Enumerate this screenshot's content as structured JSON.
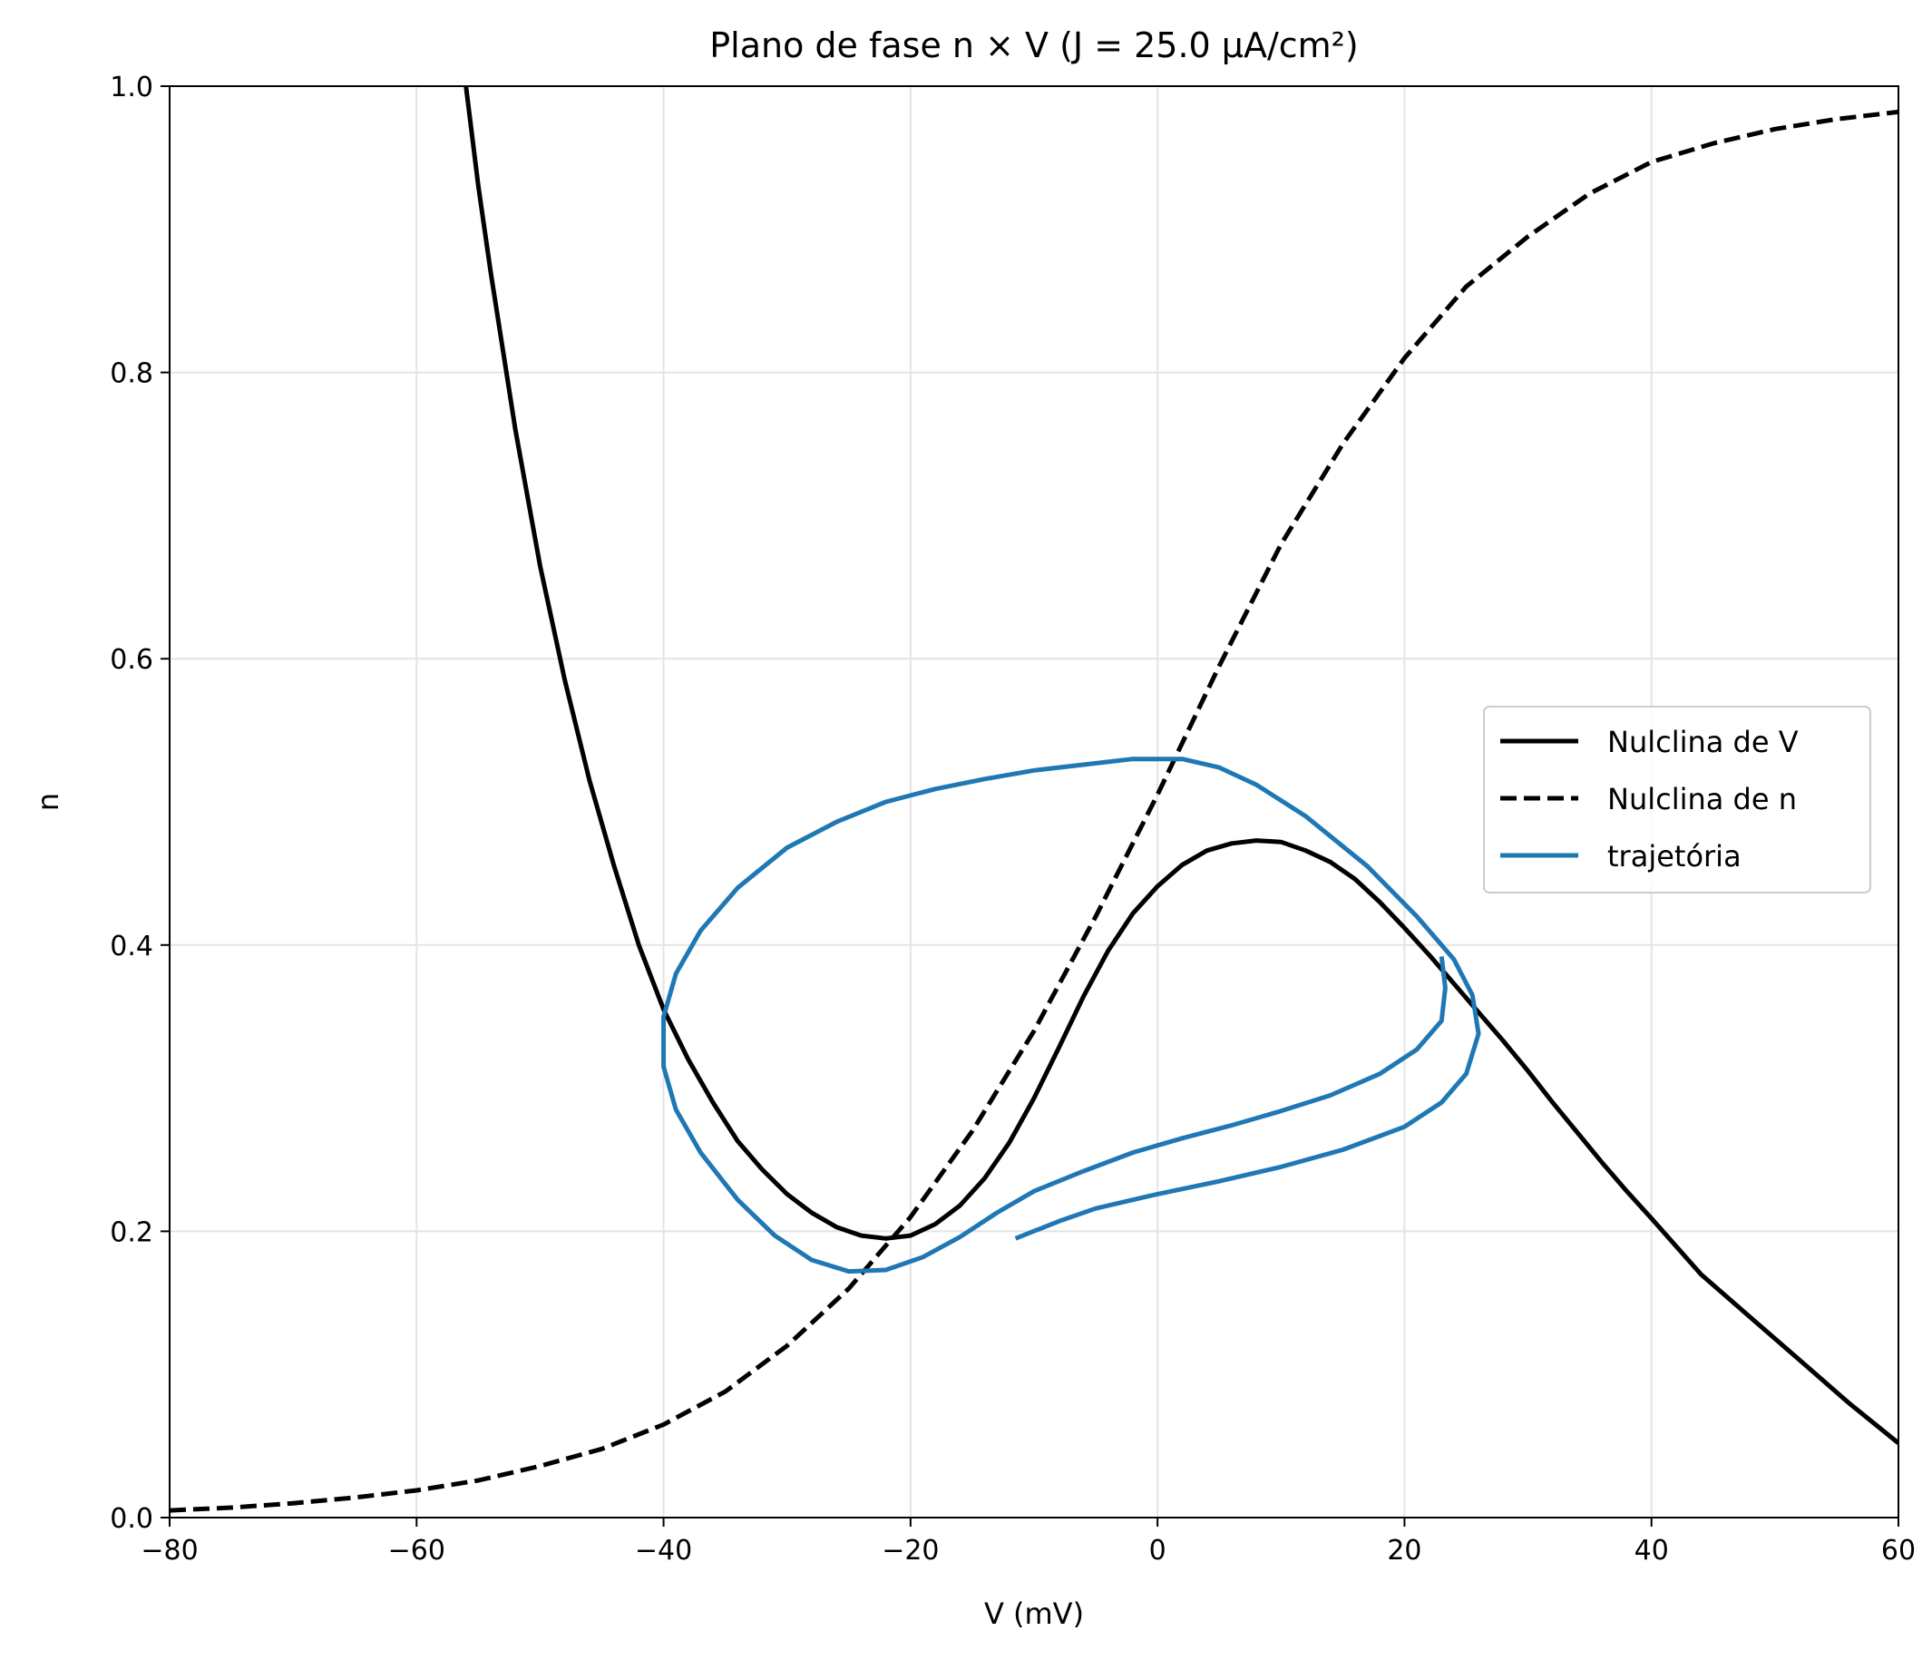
{
  "chart_data": {
    "type": "line",
    "title": "Plano de fase n × V (J = 25.0 μA/cm²)",
    "xlabel": "V (mV)",
    "ylabel": "n",
    "xlim": [
      -80,
      60
    ],
    "ylim": [
      0.0,
      1.0
    ],
    "xticks": [
      -80,
      -60,
      -40,
      -20,
      0,
      20,
      40,
      60
    ],
    "xtick_labels": [
      "−80",
      "−60",
      "−40",
      "−20",
      "0",
      "20",
      "40",
      "60"
    ],
    "yticks": [
      0.0,
      0.2,
      0.4,
      0.6,
      0.8,
      1.0
    ],
    "ytick_labels": [
      "0.0",
      "0.2",
      "0.4",
      "0.6",
      "0.8",
      "1.0"
    ],
    "grid": true,
    "legend_position": "center-right",
    "series": [
      {
        "name": "Nulclina de V",
        "color": "#000000",
        "style": "solid",
        "x": [
          -56,
          -55,
          -54,
          -52,
          -50,
          -48,
          -46,
          -44,
          -42,
          -40,
          -38,
          -36,
          -34,
          -32,
          -30,
          -28,
          -26,
          -24,
          -22,
          -20,
          -18,
          -16,
          -14,
          -12,
          -10,
          -8,
          -6,
          -4,
          -2,
          0,
          2,
          4,
          6,
          8,
          10,
          12,
          14,
          16,
          18,
          20,
          22,
          24,
          26,
          28,
          30,
          32,
          34,
          36,
          38,
          40,
          44,
          48,
          52,
          56,
          60
        ],
        "y": [
          1.0,
          0.93,
          0.87,
          0.76,
          0.665,
          0.585,
          0.515,
          0.455,
          0.4,
          0.355,
          0.32,
          0.29,
          0.263,
          0.243,
          0.226,
          0.213,
          0.203,
          0.197,
          0.195,
          0.197,
          0.205,
          0.218,
          0.237,
          0.262,
          0.293,
          0.328,
          0.364,
          0.396,
          0.422,
          0.441,
          0.456,
          0.466,
          0.471,
          0.473,
          0.472,
          0.466,
          0.458,
          0.446,
          0.43,
          0.412,
          0.393,
          0.373,
          0.353,
          0.333,
          0.312,
          0.29,
          0.269,
          0.248,
          0.228,
          0.209,
          0.17,
          0.14,
          0.11,
          0.08,
          0.052
        ]
      },
      {
        "name": "Nulclina de n",
        "color": "#000000",
        "style": "dashed",
        "x": [
          -80,
          -75,
          -70,
          -65,
          -60,
          -55,
          -50,
          -45,
          -40,
          -35,
          -30,
          -25,
          -20,
          -15,
          -10,
          -5,
          0,
          5,
          10,
          15,
          20,
          25,
          30,
          35,
          40,
          45,
          50,
          55,
          60
        ],
        "y": [
          0.005,
          0.007,
          0.01,
          0.014,
          0.019,
          0.026,
          0.036,
          0.048,
          0.065,
          0.088,
          0.12,
          0.16,
          0.21,
          0.27,
          0.34,
          0.42,
          0.505,
          0.595,
          0.68,
          0.75,
          0.81,
          0.86,
          0.895,
          0.925,
          0.947,
          0.96,
          0.97,
          0.977,
          0.982
        ]
      },
      {
        "name": "trajetória",
        "color": "#1f77b4",
        "style": "solid",
        "x": [
          -11.5,
          -8,
          -5,
          0,
          5,
          10,
          15,
          20,
          23,
          25,
          26,
          25.5,
          24,
          21,
          17,
          12,
          8,
          5,
          2,
          -2,
          -6,
          -10,
          -14,
          -18,
          -22,
          -26,
          -30,
          -34,
          -37,
          -39,
          -40,
          -40,
          -39,
          -37,
          -34,
          -31,
          -28,
          -25,
          -22,
          -19,
          -16,
          -13,
          -10,
          -6,
          -2,
          2,
          6,
          10,
          14,
          18,
          21,
          23,
          23.3,
          23
        ],
        "y": [
          0.195,
          0.207,
          0.216,
          0.226,
          0.235,
          0.245,
          0.257,
          0.273,
          0.29,
          0.31,
          0.338,
          0.365,
          0.39,
          0.42,
          0.455,
          0.49,
          0.512,
          0.524,
          0.53,
          0.53,
          0.526,
          0.522,
          0.516,
          0.509,
          0.5,
          0.486,
          0.468,
          0.44,
          0.41,
          0.38,
          0.35,
          0.315,
          0.285,
          0.255,
          0.222,
          0.197,
          0.18,
          0.172,
          0.173,
          0.182,
          0.196,
          0.213,
          0.228,
          0.242,
          0.255,
          0.265,
          0.274,
          0.284,
          0.295,
          0.31,
          0.327,
          0.347,
          0.37,
          0.392
        ]
      }
    ]
  }
}
